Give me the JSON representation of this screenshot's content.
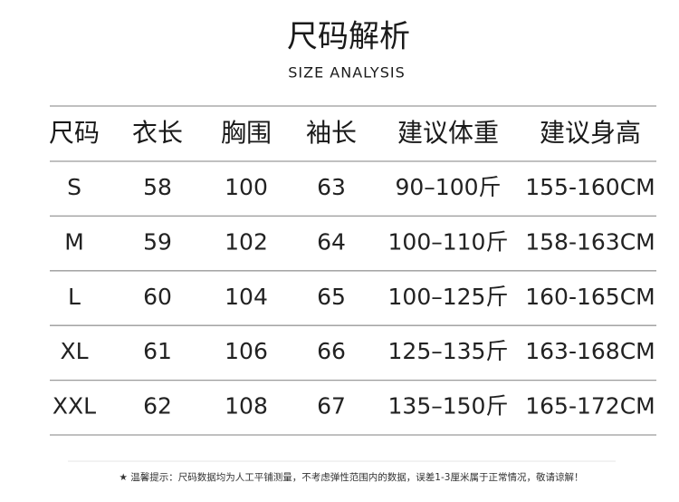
{
  "header": {
    "title": "尺码解析",
    "subtitle": "SIZE ANALYSIS"
  },
  "table": {
    "columns": [
      "尺码",
      "衣长",
      "胸围",
      "袖长",
      "建议体重",
      "建议身高"
    ],
    "rows": [
      [
        "S",
        "58",
        "100",
        "63",
        "90–100斤",
        "155-160CM"
      ],
      [
        "M",
        "59",
        "102",
        "64",
        "100–110斤",
        "158-163CM"
      ],
      [
        "L",
        "60",
        "104",
        "65",
        "100–125斤",
        "160-165CM"
      ],
      [
        "XL",
        "61",
        "106",
        "66",
        "125–135斤",
        "163-168CM"
      ],
      [
        "XXL",
        "62",
        "108",
        "67",
        "135–150斤",
        "165-172CM"
      ]
    ]
  },
  "footnote": "★ 温馨提示：尺码数据均为人工平铺测量，不考虑弹性范围内的数据，误差1-3厘米属于正常情况，敬请谅解！"
}
